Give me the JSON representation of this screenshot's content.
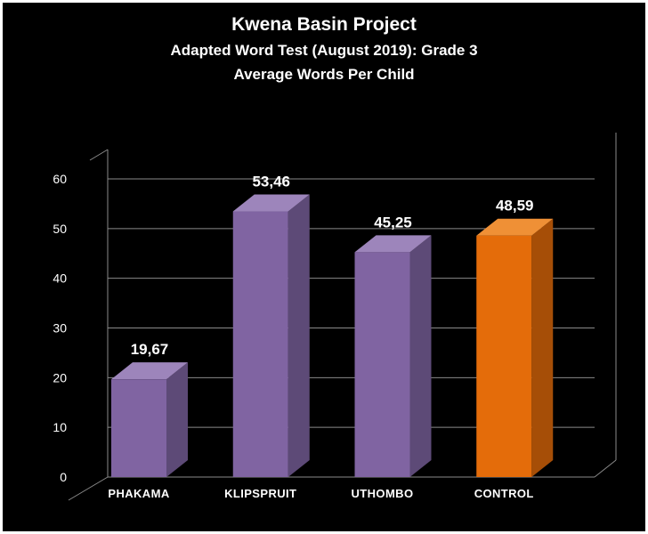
{
  "page": {
    "background_color": "#000000",
    "border_color": "#ffffff",
    "text_color": "#ffffff"
  },
  "chart_data": {
    "type": "bar",
    "style": "3d",
    "title": "Kwena Basin Project",
    "subtitle": "Adapted Word Test (August 2019): Grade 3",
    "subtitle2": "Average Words Per Child",
    "categories": [
      "PHAKAMA",
      "KLIPSPRUIT",
      "UTHOMBO",
      "CONTROL"
    ],
    "values": [
      19.67,
      53.46,
      45.25,
      48.59
    ],
    "value_labels": [
      "19,67",
      "53,46",
      "45,25",
      "48,59"
    ],
    "xlabel": "",
    "ylabel": "",
    "ylim": [
      0,
      60
    ],
    "yticks": [
      0,
      10,
      20,
      30,
      40,
      50,
      60
    ],
    "grid": true,
    "legend": false,
    "grid_color": "#8a8a8a",
    "text_color": "#ffffff",
    "bar_colors": [
      {
        "front": "#8064A2",
        "top": "#9d85bb",
        "side": "#5d4a77"
      },
      {
        "front": "#8064A2",
        "top": "#9d85bb",
        "side": "#5d4a77"
      },
      {
        "front": "#8064A2",
        "top": "#9d85bb",
        "side": "#5d4a77"
      },
      {
        "front": "#E46C0A",
        "top": "#ef9036",
        "side": "#a64e07"
      }
    ]
  }
}
